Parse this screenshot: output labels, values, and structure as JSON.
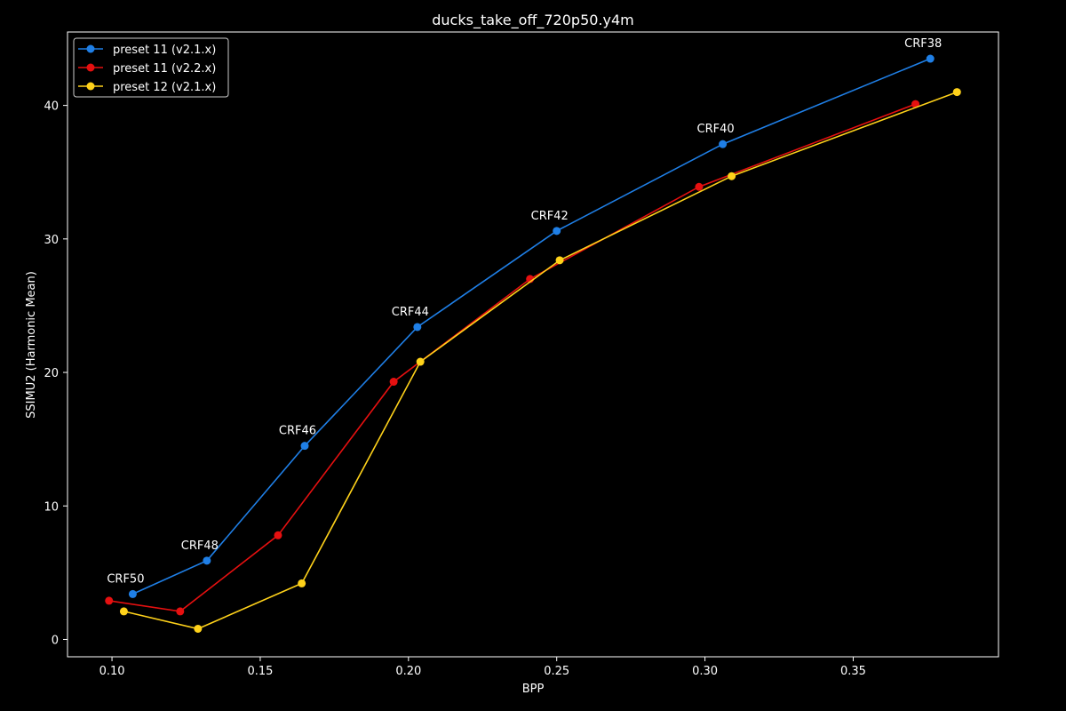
{
  "chart_data": {
    "type": "line",
    "title": "ducks_take_off_720p50.y4m",
    "xlabel": "BPP",
    "ylabel": "SSIMU2 (Harmonic Mean)",
    "xlim": [
      0.085,
      0.399
    ],
    "ylim": [
      -1.3,
      45.5
    ],
    "xticks": [
      0.1,
      0.15,
      0.2,
      0.25,
      0.3,
      0.35
    ],
    "xtick_labels": [
      "0.10",
      "0.15",
      "0.20",
      "0.25",
      "0.30",
      "0.35"
    ],
    "yticks": [
      0,
      10,
      20,
      30,
      40
    ],
    "ytick_labels": [
      "0",
      "10",
      "20",
      "30",
      "40"
    ],
    "grid": false,
    "legend_position": "top-left",
    "background": "#000000",
    "series": [
      {
        "name": "preset 11 (v2.1.x)",
        "color": "#1f7fe6",
        "x": [
          0.107,
          0.132,
          0.165,
          0.203,
          0.25,
          0.306,
          0.376
        ],
        "y": [
          3.4,
          5.9,
          14.5,
          23.4,
          30.6,
          37.1,
          43.5
        ]
      },
      {
        "name": "preset 11 (v2.2.x)",
        "color": "#e61010",
        "x": [
          0.099,
          0.123,
          0.156,
          0.195,
          0.241,
          0.298,
          0.371
        ],
        "y": [
          2.9,
          2.1,
          7.8,
          19.3,
          27.0,
          33.9,
          40.1
        ]
      },
      {
        "name": "preset 12 (v2.1.x)",
        "color": "#ffd21a",
        "x": [
          0.104,
          0.129,
          0.164,
          0.204,
          0.251,
          0.309,
          0.385
        ],
        "y": [
          2.1,
          0.8,
          4.2,
          20.8,
          28.4,
          34.7,
          41.0
        ]
      }
    ],
    "annotations": [
      {
        "text": "CRF50",
        "x": 0.107,
        "y": 3.4
      },
      {
        "text": "CRF48",
        "x": 0.132,
        "y": 5.9
      },
      {
        "text": "CRF46",
        "x": 0.165,
        "y": 14.5
      },
      {
        "text": "CRF44",
        "x": 0.203,
        "y": 23.4
      },
      {
        "text": "CRF42",
        "x": 0.25,
        "y": 30.6
      },
      {
        "text": "CRF40",
        "x": 0.306,
        "y": 37.1
      },
      {
        "text": "CRF38",
        "x": 0.376,
        "y": 43.5
      }
    ]
  }
}
